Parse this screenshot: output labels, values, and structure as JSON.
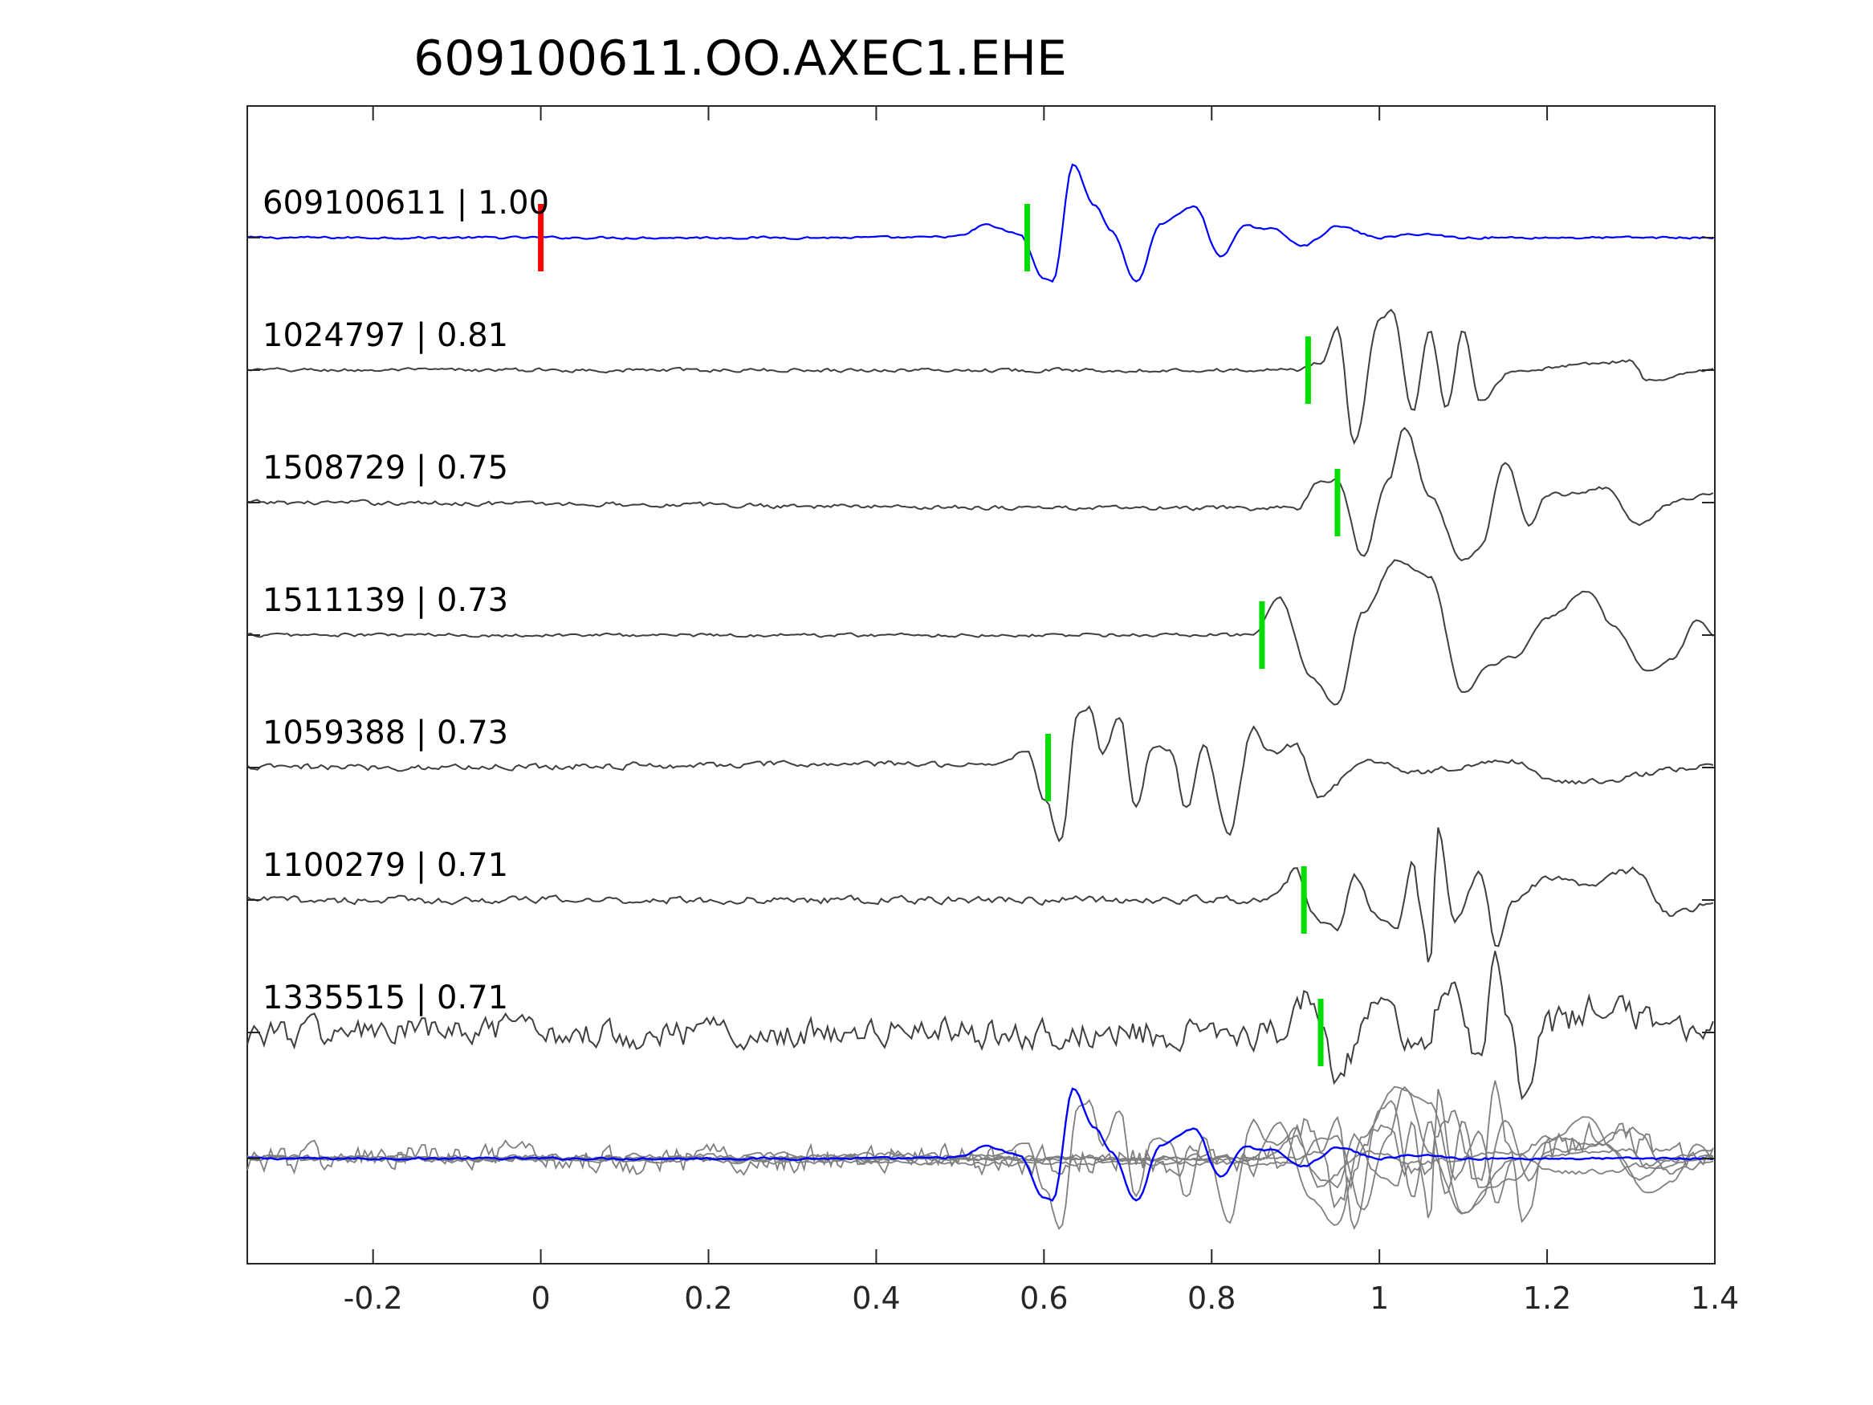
{
  "chart_data": {
    "type": "line",
    "title": "609100611.OO.AXEC1.EHE",
    "xlabel": "",
    "ylabel": "",
    "xlim": [
      -0.35,
      1.4
    ],
    "xticks": [
      "-0.2",
      "0",
      "0.2",
      "0.4",
      "0.6",
      "0.8",
      "1",
      "1.2",
      "1.4"
    ],
    "grid": false,
    "colors": {
      "template": "#0000ff",
      "trace": "#3f3f3f",
      "overlay": "#7f7f7f",
      "pick": "#00dd00",
      "reference": "#ff0000",
      "axis": "#262626"
    },
    "reference_marker_x": 0.0,
    "series": [
      {
        "label": "609100611 | 1.00",
        "pick_x": 0.58,
        "color": "#0000ff",
        "shape": [
          [
            -0.35,
            0
          ],
          [
            0.45,
            0
          ],
          [
            0.5,
            0.02
          ],
          [
            0.53,
            0.17
          ],
          [
            0.57,
            0.05
          ],
          [
            0.6,
            -0.55
          ],
          [
            0.61,
            -0.6
          ],
          [
            0.635,
            0.98
          ],
          [
            0.66,
            0.45
          ],
          [
            0.68,
            0.1
          ],
          [
            0.71,
            -0.6
          ],
          [
            0.74,
            0.2
          ],
          [
            0.78,
            0.42
          ],
          [
            0.81,
            -0.25
          ],
          [
            0.84,
            0.15
          ],
          [
            0.87,
            0.12
          ],
          [
            0.91,
            -0.1
          ],
          [
            0.95,
            0.15
          ],
          [
            1.0,
            0.0
          ],
          [
            1.05,
            0.05
          ],
          [
            1.1,
            0.0
          ],
          [
            1.4,
            0
          ]
        ],
        "noise": 0.025
      },
      {
        "label": "1024797 | 0.81",
        "pick_x": 0.915,
        "color": "#3f3f3f",
        "shape": [
          [
            -0.35,
            0
          ],
          [
            0.9,
            0
          ],
          [
            0.93,
            0.1
          ],
          [
            0.95,
            0.58
          ],
          [
            0.97,
            -1.0
          ],
          [
            1.0,
            0.7
          ],
          [
            1.015,
            0.8
          ],
          [
            1.04,
            -0.55
          ],
          [
            1.06,
            0.53
          ],
          [
            1.08,
            -0.5
          ],
          [
            1.1,
            0.55
          ],
          [
            1.12,
            -0.4
          ],
          [
            1.16,
            0.0
          ],
          [
            1.3,
            0.12
          ],
          [
            1.32,
            -0.15
          ],
          [
            1.4,
            0
          ]
        ],
        "noise": 0.04
      },
      {
        "label": "1508729 | 0.75",
        "pick_x": 0.95,
        "color": "#3f3f3f",
        "shape": [
          [
            -0.35,
            0
          ],
          [
            0.9,
            -0.08
          ],
          [
            0.93,
            0.3
          ],
          [
            0.95,
            0.3
          ],
          [
            0.98,
            -0.72
          ],
          [
            1.01,
            0.3
          ],
          [
            1.03,
            1.0
          ],
          [
            1.06,
            0.1
          ],
          [
            1.1,
            -0.8
          ],
          [
            1.12,
            -0.6
          ],
          [
            1.15,
            0.55
          ],
          [
            1.18,
            -0.3
          ],
          [
            1.2,
            0.1
          ],
          [
            1.27,
            0.2
          ],
          [
            1.31,
            -0.3
          ],
          [
            1.35,
            0.0
          ],
          [
            1.4,
            0.15
          ]
        ],
        "noise": 0.05
      },
      {
        "label": "1511139 | 0.73",
        "pick_x": 0.86,
        "color": "#3f3f3f",
        "shape": [
          [
            -0.35,
            0
          ],
          [
            0.8,
            0.0
          ],
          [
            0.85,
            0.0
          ],
          [
            0.88,
            0.5
          ],
          [
            0.92,
            -0.6
          ],
          [
            0.95,
            -0.95
          ],
          [
            0.98,
            0.3
          ],
          [
            1.02,
            1.0
          ],
          [
            1.06,
            0.8
          ],
          [
            1.1,
            -0.8
          ],
          [
            1.13,
            -0.4
          ],
          [
            1.16,
            -0.3
          ],
          [
            1.2,
            0.25
          ],
          [
            1.25,
            0.6
          ],
          [
            1.28,
            0.1
          ],
          [
            1.32,
            -0.5
          ],
          [
            1.35,
            -0.3
          ],
          [
            1.38,
            0.2
          ],
          [
            1.4,
            0.0
          ]
        ],
        "noise": 0.04
      },
      {
        "label": "1059388 | 0.73",
        "pick_x": 0.605,
        "color": "#3f3f3f",
        "shape": [
          [
            -0.35,
            0
          ],
          [
            0.55,
            0.05
          ],
          [
            0.58,
            0.25
          ],
          [
            0.6,
            -0.4
          ],
          [
            0.62,
            -1.0
          ],
          [
            0.64,
            0.7
          ],
          [
            0.655,
            0.8
          ],
          [
            0.67,
            0.2
          ],
          [
            0.69,
            0.7
          ],
          [
            0.71,
            -0.55
          ],
          [
            0.73,
            0.3
          ],
          [
            0.75,
            0.25
          ],
          [
            0.77,
            -0.55
          ],
          [
            0.79,
            0.3
          ],
          [
            0.82,
            -0.9
          ],
          [
            0.85,
            0.55
          ],
          [
            0.87,
            0.2
          ],
          [
            0.9,
            0.3
          ],
          [
            0.93,
            -0.4
          ],
          [
            0.98,
            0.1
          ],
          [
            1.05,
            -0.05
          ],
          [
            1.15,
            0.1
          ],
          [
            1.22,
            -0.2
          ],
          [
            1.4,
            0.0
          ]
        ],
        "noise": 0.07
      },
      {
        "label": "1100279 | 0.71",
        "pick_x": 0.91,
        "color": "#3f3f3f",
        "shape": [
          [
            -0.35,
            0
          ],
          [
            0.85,
            0
          ],
          [
            0.88,
            0.1
          ],
          [
            0.9,
            0.4
          ],
          [
            0.92,
            -0.2
          ],
          [
            0.95,
            -0.4
          ],
          [
            0.97,
            0.3
          ],
          [
            1.0,
            -0.25
          ],
          [
            1.02,
            -0.4
          ],
          [
            1.04,
            0.5
          ],
          [
            1.05,
            -0.2
          ],
          [
            1.06,
            -0.9
          ],
          [
            1.07,
            0.95
          ],
          [
            1.09,
            -0.3
          ],
          [
            1.12,
            0.4
          ],
          [
            1.14,
            -0.6
          ],
          [
            1.16,
            0.0
          ],
          [
            1.2,
            0.3
          ],
          [
            1.25,
            0.2
          ],
          [
            1.3,
            0.4
          ],
          [
            1.35,
            -0.2
          ],
          [
            1.4,
            0.0
          ]
        ],
        "noise": 0.08
      },
      {
        "label": "1335515 | 0.71",
        "pick_x": 0.93,
        "color": "#3f3f3f",
        "shape": [
          [
            -0.35,
            0
          ],
          [
            0.88,
            0.0
          ],
          [
            0.92,
            0.55
          ],
          [
            0.95,
            -0.5
          ],
          [
            1.0,
            0.3
          ],
          [
            1.05,
            -0.2
          ],
          [
            1.08,
            0.6
          ],
          [
            1.12,
            -0.3
          ],
          [
            1.14,
            0.95
          ],
          [
            1.16,
            -0.1
          ],
          [
            1.17,
            -0.9
          ],
          [
            1.2,
            0.1
          ],
          [
            1.28,
            0.4
          ],
          [
            1.33,
            0.1
          ],
          [
            1.4,
            0.0
          ]
        ],
        "noise": 0.32
      }
    ]
  }
}
